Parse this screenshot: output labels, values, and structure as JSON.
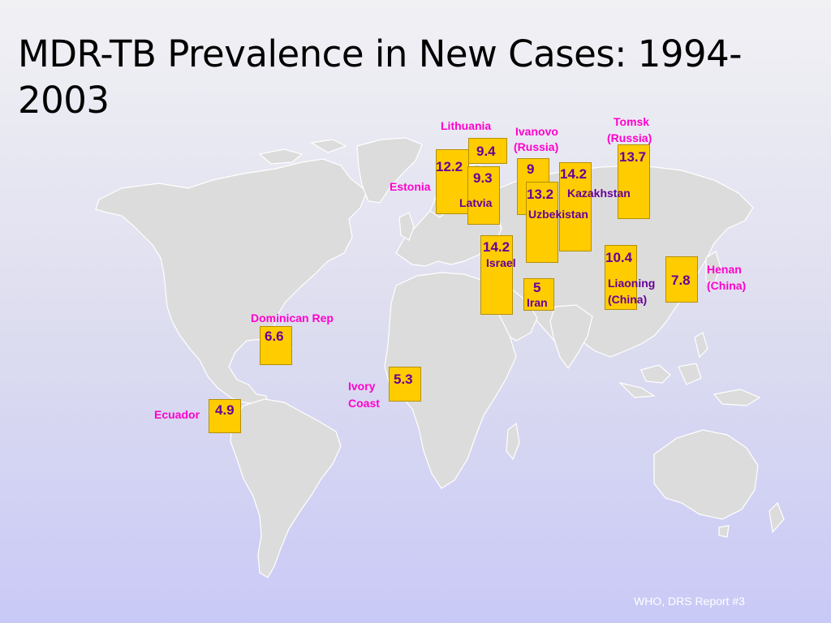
{
  "slide": {
    "title": "MDR-TB Prevalence in New Cases: 1994-2003",
    "source": "WHO, DRS Report #3"
  },
  "colors": {
    "box_fill": "#ffcc00",
    "value_text": "#660099",
    "label_pink": "#ff00cc",
    "label_purple": "#660099",
    "land": "#dcdcdc",
    "borders": "#ffffff"
  },
  "map_data": {
    "metric": "MDR-TB Prevalence in New Cases",
    "sites": [
      {
        "name": "Lithuania",
        "value": "9.4"
      },
      {
        "name": "Estonia",
        "value": "12.2"
      },
      {
        "name": "Latvia",
        "value": "9.3"
      },
      {
        "name": "Ivanovo (Russia)",
        "value": "9"
      },
      {
        "name": "Kazakhstan",
        "value": "14.2"
      },
      {
        "name": "Uzbekistan",
        "value": "13.2"
      },
      {
        "name": "Tomsk (Russia)",
        "value": "13.7"
      },
      {
        "name": "Israel",
        "value": "14.2"
      },
      {
        "name": "Iran",
        "value": "5"
      },
      {
        "name": "Liaoning (China)",
        "value": "10.4"
      },
      {
        "name": "Henan (China)",
        "value": "7.8"
      },
      {
        "name": "Dominican Rep",
        "value": "6.6"
      },
      {
        "name": "Ivory Coast",
        "value": "5.3"
      },
      {
        "name": "Ecuador",
        "value": "4.9"
      }
    ]
  },
  "labels": {
    "lithuania": "Lithuania",
    "ivanovo_1": "Ivanovo",
    "ivanovo_2": "(Russia)",
    "tomsk_1": "Tomsk",
    "tomsk_2": "(Russia)",
    "estonia": "Estonia",
    "latvia": "Latvia",
    "kazakhstan": "Kazakhstan",
    "uzbekistan": "Uzbekistan",
    "israel": "Israel",
    "iran": "Iran",
    "liaoning_1": "Liaoning",
    "liaoning_2": "(China)",
    "henan_1": "Henan",
    "henan_2": "(China)",
    "dominican": "Dominican Rep",
    "ivory_1": "Ivory",
    "ivory_2": "Coast",
    "ecuador": "Ecuador"
  }
}
